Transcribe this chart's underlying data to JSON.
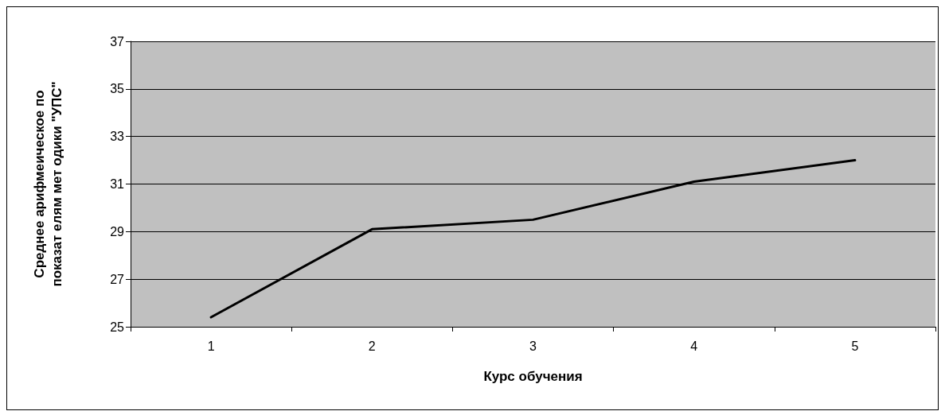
{
  "chart_data": {
    "type": "line",
    "xlabel": "Курс обучения",
    "ylabel": "Среднее арифмеическое по показат елям мет одики \"УПС\"",
    "categories": [
      "1",
      "2",
      "3",
      "4",
      "5"
    ],
    "series": [
      {
        "color": "#000000",
        "values": [
          25.4,
          29.1,
          29.5,
          31.1,
          32.0
        ]
      }
    ],
    "ylim": [
      25,
      37
    ],
    "yticks": [
      25,
      27,
      29,
      31,
      33,
      35,
      37
    ],
    "grid": "y",
    "marker": "none",
    "line_style": "solid"
  }
}
